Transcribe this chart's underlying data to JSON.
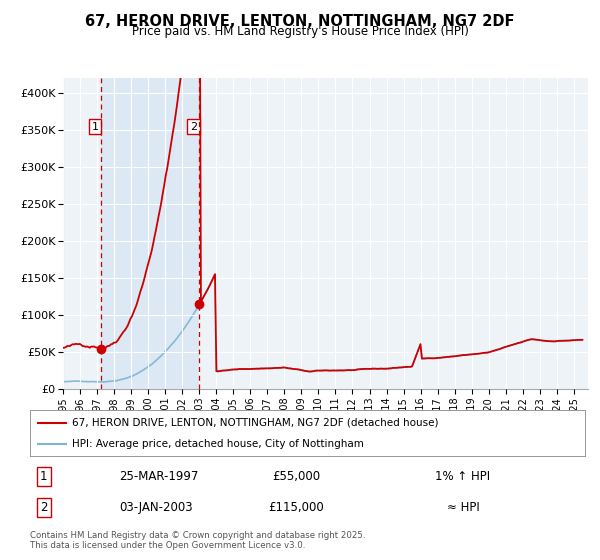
{
  "title_line1": "67, HERON DRIVE, LENTON, NOTTINGHAM, NG7 2DF",
  "title_line2": "Price paid vs. HM Land Registry's House Price Index (HPI)",
  "xlim": [
    1995.0,
    2025.83
  ],
  "ylim": [
    0,
    420000
  ],
  "yticks": [
    0,
    50000,
    100000,
    150000,
    200000,
    250000,
    300000,
    350000,
    400000
  ],
  "ytick_labels": [
    "£0",
    "£50K",
    "£100K",
    "£150K",
    "£200K",
    "£250K",
    "£300K",
    "£350K",
    "£400K"
  ],
  "xticks": [
    1995,
    1996,
    1997,
    1998,
    1999,
    2000,
    2001,
    2002,
    2003,
    2004,
    2005,
    2006,
    2007,
    2008,
    2009,
    2010,
    2011,
    2012,
    2013,
    2014,
    2015,
    2016,
    2017,
    2018,
    2019,
    2020,
    2021,
    2022,
    2023,
    2024,
    2025
  ],
  "transaction1_x": 1997.23,
  "transaction1_y": 55000,
  "transaction2_x": 2003.01,
  "transaction2_y": 115000,
  "transaction1_date": "25-MAR-1997",
  "transaction1_price": "£55,000",
  "transaction1_hpi": "1% ↑ HPI",
  "transaction2_date": "03-JAN-2003",
  "transaction2_price": "£115,000",
  "transaction2_hpi": "≈ HPI",
  "hpi_line_color": "#7ab3d4",
  "price_line_color": "#cc0000",
  "shading_color": "#dce9f5",
  "vline_color": "#cc0000",
  "marker_color": "#cc0000",
  "legend_label1": "67, HERON DRIVE, LENTON, NOTTINGHAM, NG7 2DF (detached house)",
  "legend_label2": "HPI: Average price, detached house, City of Nottingham",
  "footer": "Contains HM Land Registry data © Crown copyright and database right 2025.\nThis data is licensed under the Open Government Licence v3.0.",
  "background_color": "#ffffff"
}
